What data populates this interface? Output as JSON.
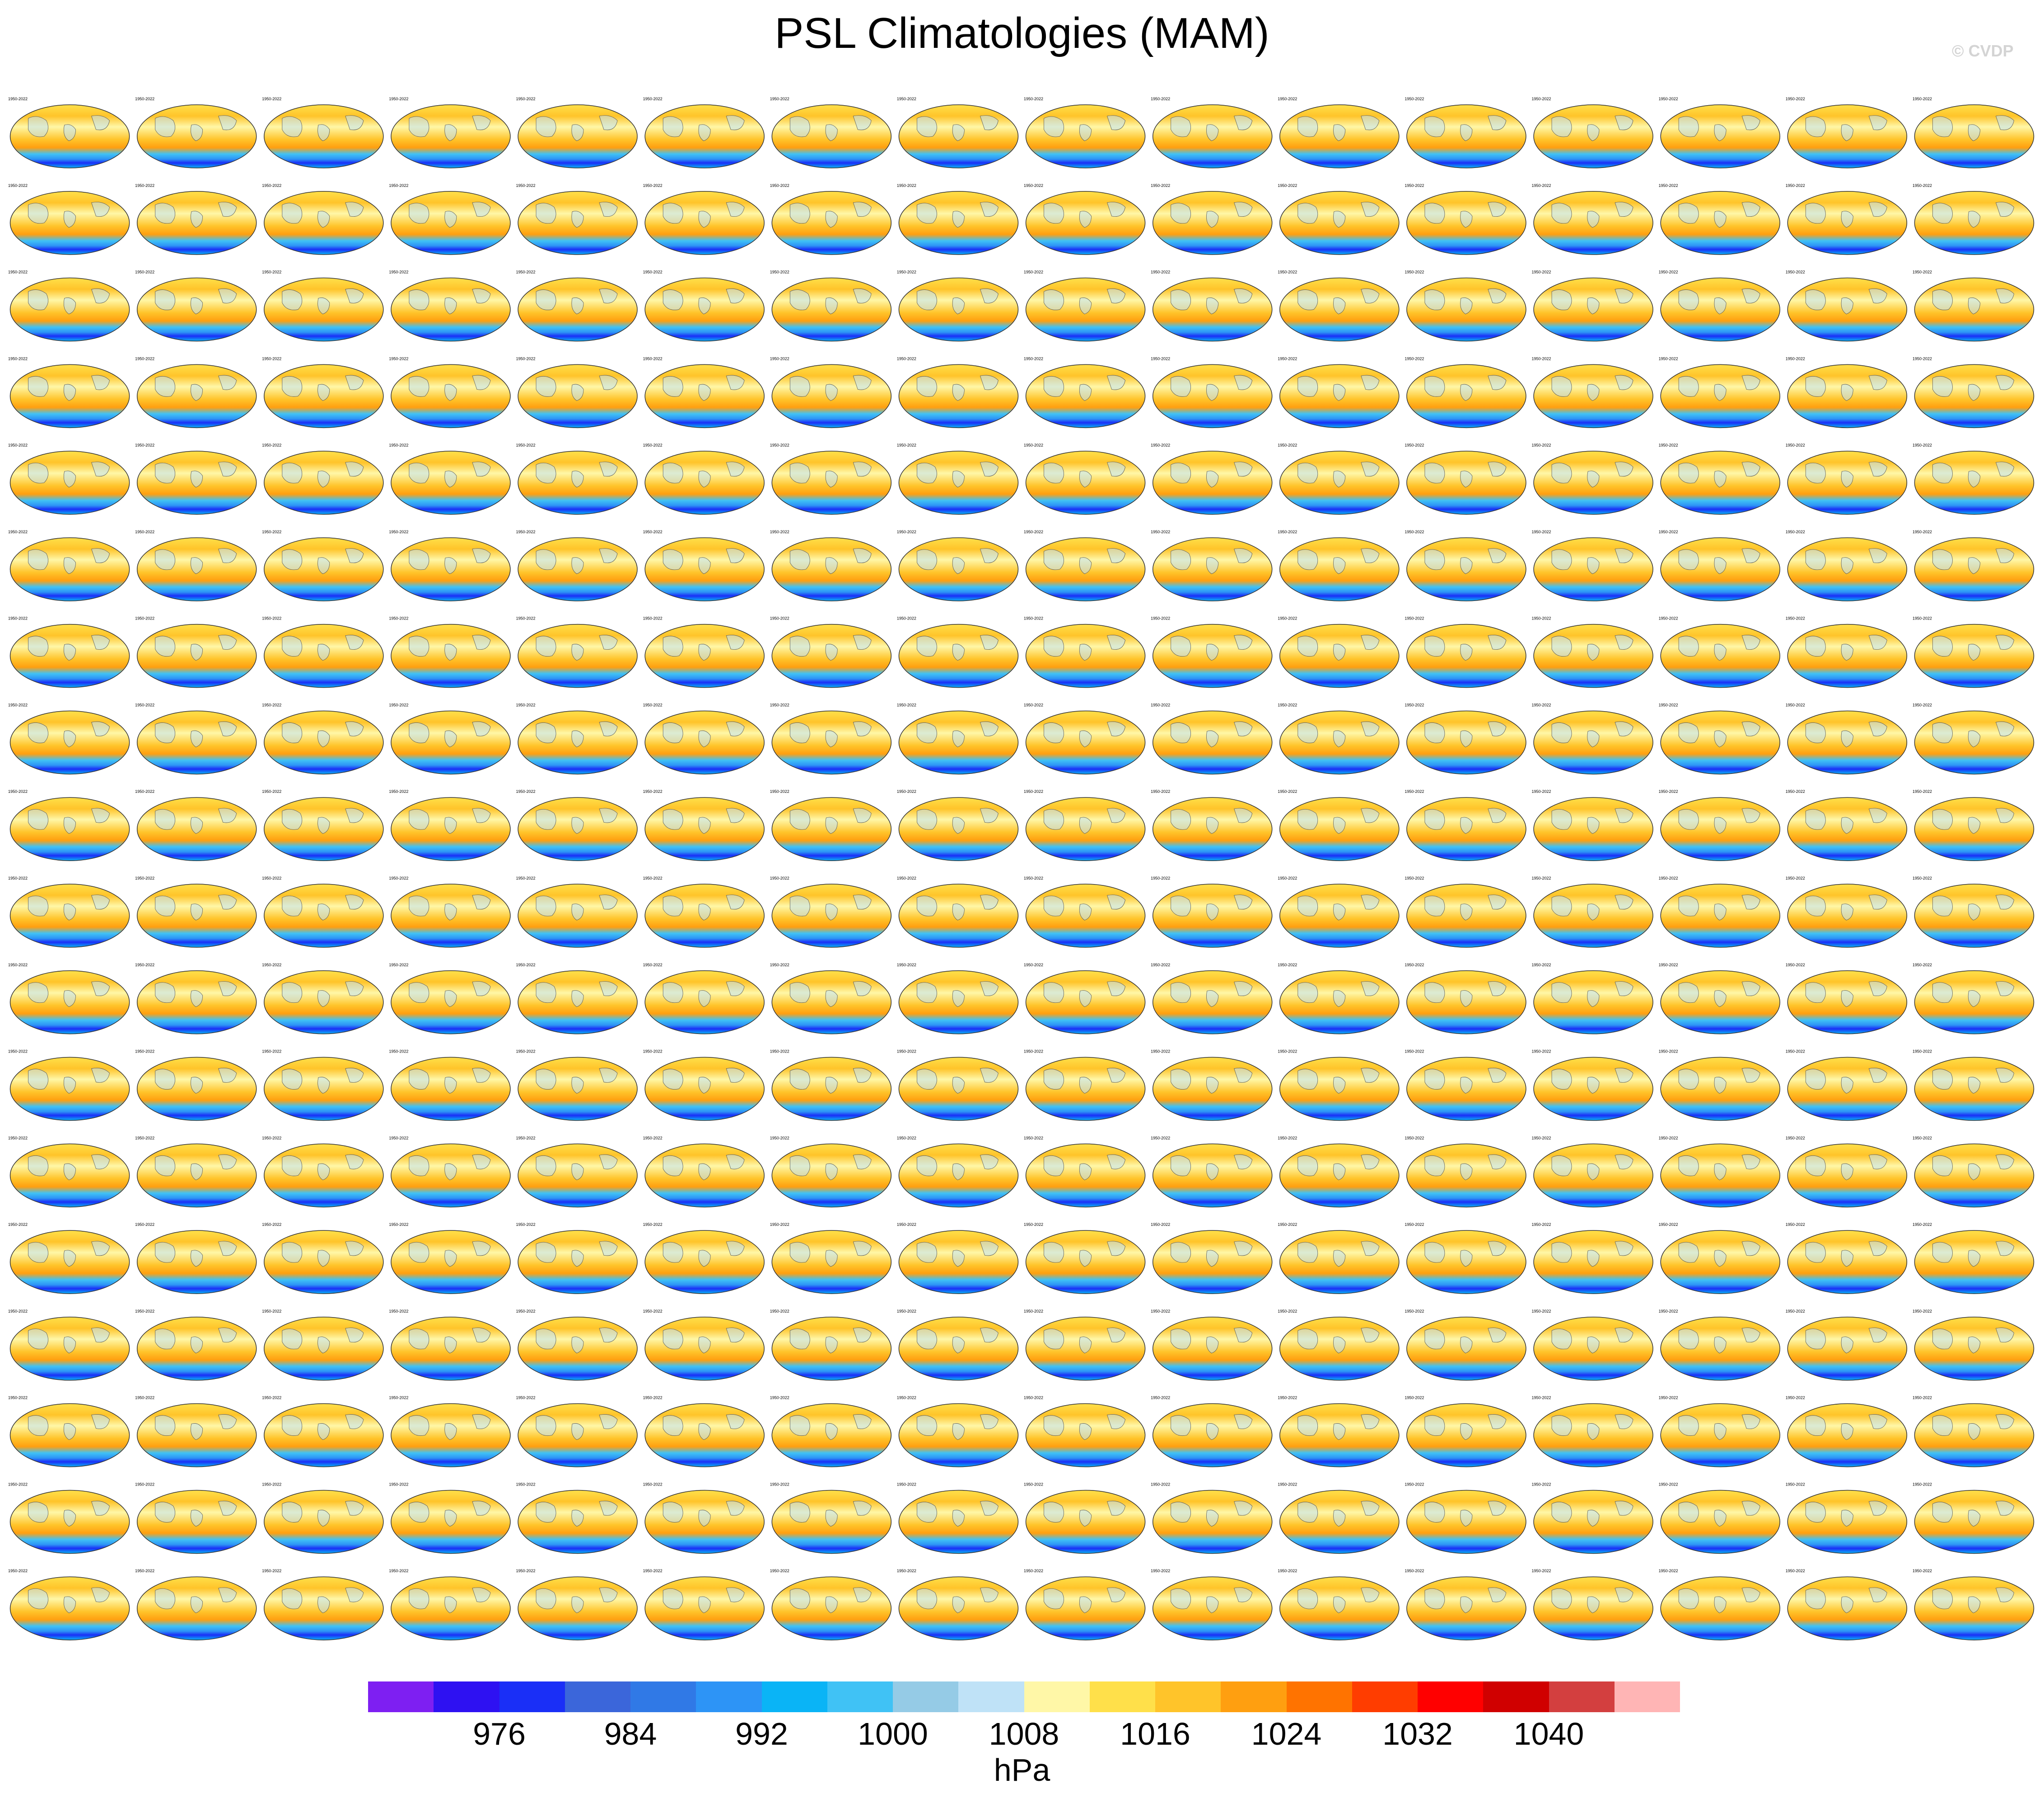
{
  "title": "PSL Climatologies (MAM)",
  "watermark": "© CVDP",
  "colorbar": {
    "colors": [
      "#7e1ff2",
      "#2e11f2",
      "#1a2ff7",
      "#3b66da",
      "#3079e6",
      "#2d94f6",
      "#0ab4f6",
      "#40c2f5",
      "#95cbe6",
      "#bfe2f7",
      "#fff7a7",
      "#ffe04a",
      "#ffc42a",
      "#ff9f10",
      "#ff7300",
      "#ff3d00",
      "#ff0000",
      "#d00000",
      "#d33f3f",
      "#ffb5b5"
    ],
    "tick_labels": [
      "976",
      "984",
      "992",
      "1000",
      "1008",
      "1016",
      "1024",
      "1032",
      "1040"
    ],
    "units": "hPa"
  },
  "panels": {
    "rows": 18,
    "cols": 16,
    "period_label": "1950-2022"
  }
}
